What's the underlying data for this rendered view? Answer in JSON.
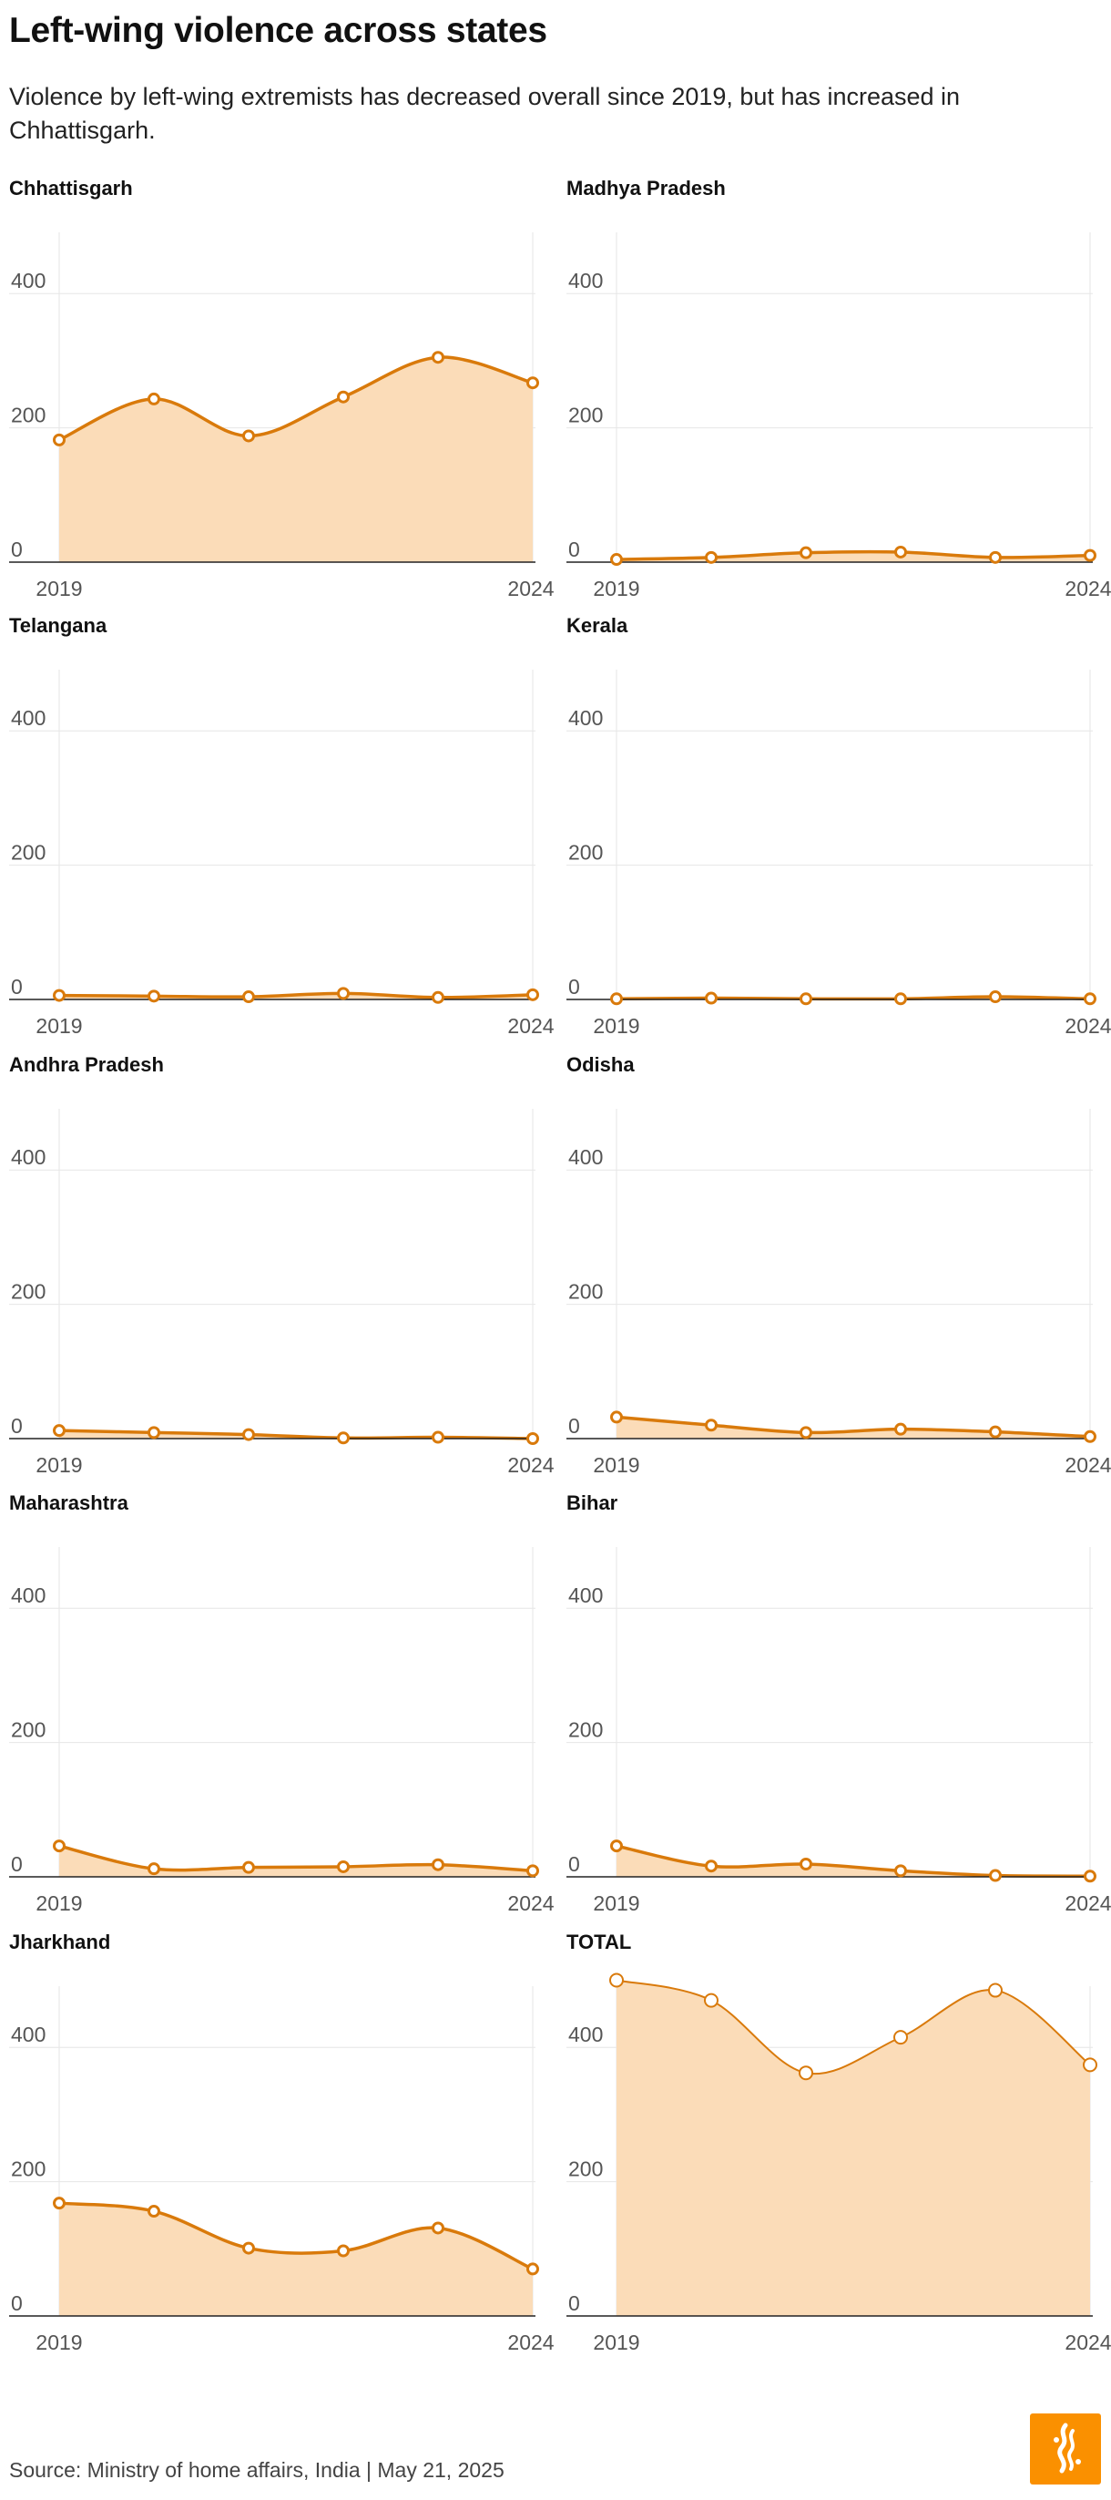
{
  "title": "Left-wing violence across states",
  "subtitle": "Violence by left-wing extremists has decreased overall since 2019, but has increased in Chhattisgarh.",
  "footer": "Source: Ministry of home affairs, India | May 21, 2025",
  "logo": {
    "icon": "al-jazeera-logo-icon",
    "color": "#fa9000"
  },
  "colors": {
    "line": "#d97a0b",
    "area": "#fbdcb8",
    "grid": "#e6e6e6",
    "axis": "#222222"
  },
  "chart_data": [
    {
      "type": "area",
      "title": "Chhattisgarh",
      "x": [
        2019,
        2020,
        2021,
        2022,
        2023,
        2024
      ],
      "values": [
        182,
        243,
        188,
        246,
        305,
        267
      ],
      "x_tick_labels": [
        "2019",
        "2024"
      ],
      "y_ticks": [
        0,
        200,
        400
      ],
      "ylim": [
        0,
        500
      ],
      "grid": true
    },
    {
      "type": "area",
      "title": "Madhya Pradesh",
      "x": [
        2019,
        2020,
        2021,
        2022,
        2023,
        2024
      ],
      "values": [
        4,
        7,
        14,
        15,
        7,
        10
      ],
      "x_tick_labels": [
        "2019",
        "2024"
      ],
      "y_ticks": [
        0,
        200,
        400
      ],
      "ylim": [
        0,
        500
      ],
      "grid": true
    },
    {
      "type": "area",
      "title": "Telangana",
      "x": [
        2019,
        2020,
        2021,
        2022,
        2023,
        2024
      ],
      "values": [
        6,
        5,
        4,
        9,
        3,
        7
      ],
      "x_tick_labels": [
        "2019",
        "2024"
      ],
      "y_ticks": [
        0,
        200,
        400
      ],
      "ylim": [
        0,
        500
      ],
      "grid": true
    },
    {
      "type": "area",
      "title": "Kerala",
      "x": [
        2019,
        2020,
        2021,
        2022,
        2023,
        2024
      ],
      "values": [
        1,
        2,
        1,
        1,
        4,
        1
      ],
      "x_tick_labels": [
        "2019",
        "2024"
      ],
      "y_ticks": [
        0,
        200,
        400
      ],
      "ylim": [
        0,
        500
      ],
      "grid": true
    },
    {
      "type": "area",
      "title": "Andhra Pradesh",
      "x": [
        2019,
        2020,
        2021,
        2022,
        2023,
        2024
      ],
      "values": [
        12,
        9,
        6,
        1,
        2,
        0
      ],
      "x_tick_labels": [
        "2019",
        "2024"
      ],
      "y_ticks": [
        0,
        200,
        400
      ],
      "ylim": [
        0,
        500
      ],
      "grid": true
    },
    {
      "type": "area",
      "title": "Odisha",
      "x": [
        2019,
        2020,
        2021,
        2022,
        2023,
        2024
      ],
      "values": [
        32,
        20,
        9,
        14,
        10,
        3
      ],
      "x_tick_labels": [
        "2019",
        "2024"
      ],
      "y_ticks": [
        0,
        200,
        400
      ],
      "ylim": [
        0,
        500
      ],
      "grid": true
    },
    {
      "type": "area",
      "title": "Maharashtra",
      "x": [
        2019,
        2020,
        2021,
        2022,
        2023,
        2024
      ],
      "values": [
        46,
        12,
        14,
        15,
        18,
        9
      ],
      "x_tick_labels": [
        "2019",
        "2024"
      ],
      "y_ticks": [
        0,
        200,
        400
      ],
      "ylim": [
        0,
        500
      ],
      "grid": true
    },
    {
      "type": "area",
      "title": "Bihar",
      "x": [
        2019,
        2020,
        2021,
        2022,
        2023,
        2024
      ],
      "values": [
        46,
        16,
        19,
        9,
        2,
        1
      ],
      "x_tick_labels": [
        "2019",
        "2024"
      ],
      "y_ticks": [
        0,
        200,
        400
      ],
      "ylim": [
        0,
        500
      ],
      "grid": true
    },
    {
      "type": "area",
      "title": "Jharkhand",
      "x": [
        2019,
        2020,
        2021,
        2022,
        2023,
        2024
      ],
      "values": [
        168,
        156,
        101,
        97,
        131,
        70
      ],
      "x_tick_labels": [
        "2019",
        "2024"
      ],
      "y_ticks": [
        0,
        200,
        400
      ],
      "ylim": [
        0,
        500
      ],
      "grid": true
    },
    {
      "type": "area",
      "title": "TOTAL",
      "x": [
        2019,
        2020,
        2021,
        2022,
        2023,
        2024
      ],
      "values": [
        500,
        470,
        362,
        415,
        485,
        374
      ],
      "x_tick_labels": [
        "2019",
        "2024"
      ],
      "y_ticks": [
        0,
        200,
        400
      ],
      "ylim": [
        0,
        500
      ],
      "grid": true
    }
  ]
}
